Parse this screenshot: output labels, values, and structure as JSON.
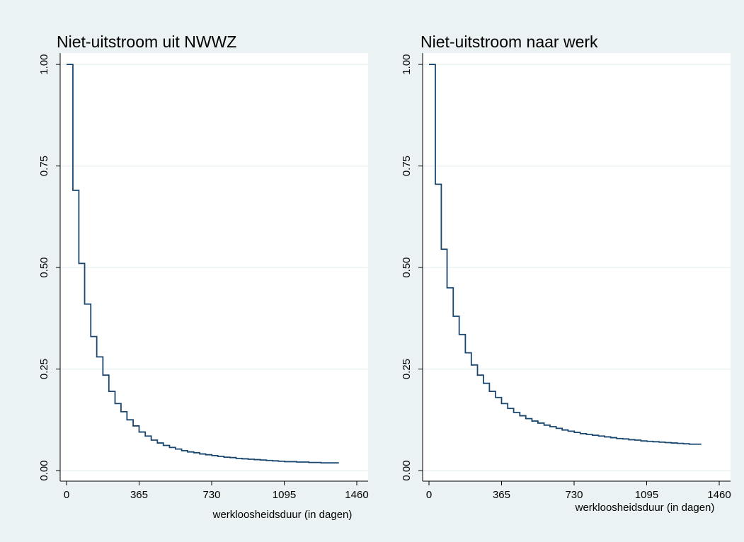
{
  "chart_data": [
    {
      "type": "step",
      "title": "Niet-uitstroom uit NWWZ",
      "xlabel": "werkloosheidsduur (in dagen)",
      "color": "#1a476f",
      "x": [
        0,
        32,
        62,
        91,
        122,
        152,
        183,
        213,
        244,
        274,
        304,
        335,
        365,
        396,
        426,
        457,
        487,
        518,
        548,
        579,
        609,
        640,
        670,
        700,
        731,
        761,
        792,
        822,
        853,
        883,
        914,
        944,
        975,
        1005,
        1036,
        1066,
        1097,
        1158,
        1219,
        1280,
        1370
      ],
      "values": [
        1.0,
        0.69,
        0.51,
        0.41,
        0.33,
        0.28,
        0.235,
        0.195,
        0.165,
        0.145,
        0.125,
        0.11,
        0.095,
        0.085,
        0.075,
        0.068,
        0.062,
        0.057,
        0.053,
        0.049,
        0.046,
        0.044,
        0.041,
        0.039,
        0.037,
        0.035,
        0.033,
        0.032,
        0.03,
        0.029,
        0.028,
        0.027,
        0.026,
        0.025,
        0.024,
        0.023,
        0.022,
        0.021,
        0.02,
        0.019,
        0.019
      ],
      "xlim": [
        -32,
        1517
      ],
      "ylim": [
        -0.026,
        1.028
      ],
      "xticks": [
        0,
        365,
        730,
        1095,
        1460
      ],
      "yticks": [
        {
          "value": 0,
          "label": "0.00"
        },
        {
          "value": 0.25,
          "label": "0.25"
        },
        {
          "value": 0.5,
          "label": "0.50"
        },
        {
          "value": 0.75,
          "label": "0.75"
        },
        {
          "value": 1,
          "label": "1.00"
        }
      ],
      "grid": true
    },
    {
      "type": "step",
      "title": "Niet-uitstroom naar werk",
      "xlabel": "werkloosheidsduur (in dagen)",
      "color": "#1a476f",
      "x": [
        0,
        32,
        62,
        91,
        122,
        152,
        183,
        213,
        244,
        274,
        304,
        335,
        365,
        396,
        426,
        457,
        487,
        518,
        548,
        579,
        609,
        640,
        670,
        700,
        731,
        761,
        792,
        822,
        853,
        883,
        914,
        944,
        975,
        1005,
        1036,
        1066,
        1097,
        1127,
        1158,
        1188,
        1219,
        1249,
        1280,
        1310,
        1370
      ],
      "values": [
        1.0,
        0.705,
        0.545,
        0.45,
        0.38,
        0.335,
        0.29,
        0.26,
        0.235,
        0.215,
        0.195,
        0.18,
        0.165,
        0.153,
        0.143,
        0.135,
        0.128,
        0.122,
        0.117,
        0.112,
        0.108,
        0.104,
        0.1,
        0.097,
        0.094,
        0.091,
        0.089,
        0.087,
        0.085,
        0.083,
        0.081,
        0.079,
        0.078,
        0.076,
        0.075,
        0.073,
        0.072,
        0.071,
        0.07,
        0.069,
        0.068,
        0.067,
        0.066,
        0.065,
        0.065
      ],
      "xlim": [
        -32,
        1517
      ],
      "ylim": [
        -0.026,
        1.028
      ],
      "xticks": [
        0,
        365,
        730,
        1095,
        1460
      ],
      "yticks": [
        {
          "value": 0,
          "label": "0.00"
        },
        {
          "value": 0.25,
          "label": "0.25"
        },
        {
          "value": 0.5,
          "label": "0.50"
        },
        {
          "value": 0.75,
          "label": "0.75"
        },
        {
          "value": 1,
          "label": "1.00"
        }
      ],
      "grid": true
    }
  ]
}
